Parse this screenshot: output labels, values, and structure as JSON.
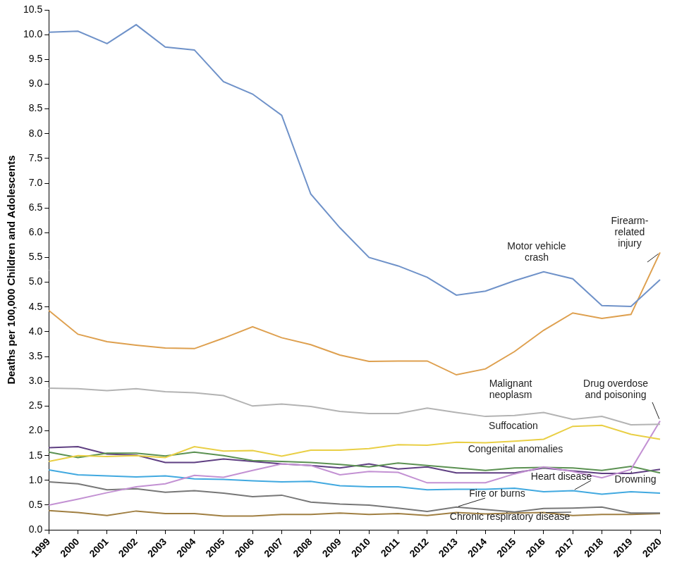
{
  "chart_data": {
    "type": "line",
    "ylabel": "Deaths per 100,000 Children and Adolescents",
    "categories": [
      "1999",
      "2000",
      "2001",
      "2002",
      "2003",
      "2004",
      "2005",
      "2006",
      "2007",
      "2008",
      "2009",
      "2010",
      "2011",
      "2012",
      "2013",
      "2014",
      "2015",
      "2016",
      "2017",
      "2018",
      "2019",
      "2020"
    ],
    "ylim": [
      0,
      10.5
    ],
    "yticks": [
      {
        "value": 0,
        "label": "0.0"
      },
      0.5,
      {
        "value": 1,
        "label": "1.0"
      },
      1.5,
      {
        "value": 2,
        "label": "2.0"
      },
      2.5,
      {
        "value": 3,
        "label": "3.0"
      },
      3.5,
      {
        "value": 4,
        "label": "4.0"
      },
      4.5,
      {
        "value": 5,
        "label": "5.0"
      },
      5.5,
      {
        "value": 6,
        "label": "6.0"
      },
      6.5,
      {
        "value": 7,
        "label": "7.0"
      },
      7.5,
      {
        "value": 8,
        "label": "8.0"
      },
      8.5,
      {
        "value": 9,
        "label": "9.0"
      },
      9.5,
      {
        "value": 10,
        "label": "10.0"
      },
      10.5
    ],
    "grid": false,
    "series": [
      {
        "name": "Motor vehicle crash",
        "color": "#6f92c9",
        "values": [
          10.05,
          10.07,
          9.82,
          10.2,
          9.75,
          9.69,
          9.05,
          8.8,
          8.37,
          6.78,
          6.1,
          5.5,
          5.33,
          5.1,
          4.74,
          4.82,
          5.03,
          5.21,
          5.07,
          4.53,
          4.51,
          5.05
        ]
      },
      {
        "name": "Firearm-related injury",
        "color": "#dea04f",
        "values": [
          4.43,
          3.95,
          3.8,
          3.73,
          3.67,
          3.66,
          3.87,
          4.1,
          3.88,
          3.74,
          3.53,
          3.4,
          3.41,
          3.41,
          3.13,
          3.25,
          3.6,
          4.03,
          4.38,
          4.27,
          4.35,
          5.6
        ]
      },
      {
        "name": "Malignant neoplasm",
        "color": "#b3b3b3",
        "values": [
          2.86,
          2.85,
          2.81,
          2.85,
          2.79,
          2.77,
          2.71,
          2.5,
          2.54,
          2.49,
          2.39,
          2.35,
          2.35,
          2.46,
          2.37,
          2.29,
          2.31,
          2.37,
          2.23,
          2.29,
          2.12,
          2.13
        ]
      },
      {
        "name": "Suffocation",
        "color": "#e9cf45",
        "values": [
          1.38,
          1.5,
          1.48,
          1.5,
          1.46,
          1.68,
          1.59,
          1.6,
          1.49,
          1.61,
          1.61,
          1.64,
          1.72,
          1.71,
          1.77,
          1.76,
          1.79,
          1.83,
          2.09,
          2.11,
          1.93,
          1.83
        ]
      },
      {
        "name": "Drug overdose and poisoning",
        "color": "#c391d3",
        "values": [
          0.5,
          0.62,
          0.75,
          0.87,
          0.93,
          1.1,
          1.06,
          1.2,
          1.33,
          1.3,
          1.11,
          1.18,
          1.16,
          0.95,
          0.95,
          0.95,
          1.13,
          1.27,
          1.18,
          1.05,
          1.22,
          2.2
        ]
      },
      {
        "name": "Congenital anomalies",
        "color": "#5b9152",
        "values": [
          1.57,
          1.46,
          1.55,
          1.55,
          1.49,
          1.57,
          1.5,
          1.4,
          1.38,
          1.36,
          1.32,
          1.27,
          1.35,
          1.3,
          1.25,
          1.2,
          1.25,
          1.26,
          1.25,
          1.2,
          1.28,
          1.15
        ]
      },
      {
        "name": "Drowning",
        "color": "#5f3f82",
        "values": [
          1.66,
          1.68,
          1.53,
          1.51,
          1.36,
          1.36,
          1.43,
          1.38,
          1.33,
          1.3,
          1.25,
          1.33,
          1.23,
          1.27,
          1.15,
          1.15,
          1.15,
          1.25,
          1.19,
          1.14,
          1.14,
          1.22
        ]
      },
      {
        "name": "Heart disease",
        "color": "#41a9e0",
        "values": [
          1.21,
          1.11,
          1.09,
          1.07,
          1.09,
          1.03,
          1.02,
          0.99,
          0.97,
          0.98,
          0.89,
          0.87,
          0.87,
          0.81,
          0.82,
          0.82,
          0.84,
          0.77,
          0.79,
          0.72,
          0.77,
          0.74
        ]
      },
      {
        "name": "Fire or burns",
        "color": "#777777",
        "values": [
          0.97,
          0.93,
          0.81,
          0.83,
          0.76,
          0.79,
          0.74,
          0.67,
          0.7,
          0.56,
          0.52,
          0.5,
          0.44,
          0.37,
          0.46,
          0.41,
          0.36,
          0.43,
          0.44,
          0.46,
          0.34,
          0.34
        ]
      },
      {
        "name": "Chronic respiratory disease",
        "color": "#a07f42",
        "values": [
          0.39,
          0.35,
          0.29,
          0.38,
          0.33,
          0.33,
          0.28,
          0.28,
          0.31,
          0.31,
          0.34,
          0.31,
          0.33,
          0.29,
          0.35,
          0.32,
          0.34,
          0.35,
          0.29,
          0.31,
          0.31,
          0.33
        ]
      }
    ]
  }
}
